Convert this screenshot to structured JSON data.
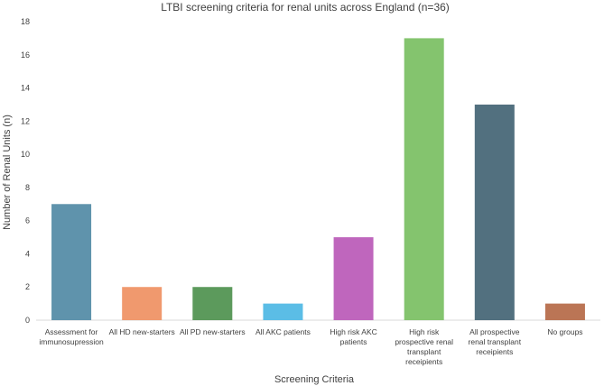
{
  "chart_data": {
    "type": "bar",
    "title": "LTBI screening criteria for renal units across England (n=36)",
    "xlabel": "Screening Criteria",
    "ylabel": "Number of Renal Units (n)",
    "ylim": [
      0,
      18
    ],
    "yticks": [
      0,
      2,
      4,
      6,
      8,
      10,
      12,
      14,
      16,
      18
    ],
    "grid": false,
    "categories": [
      [
        "Assessment for",
        "immunosupression"
      ],
      [
        "All HD new-starters"
      ],
      [
        "All PD new-starters"
      ],
      [
        "All AKC patients"
      ],
      [
        "High risk AKC",
        "patients"
      ],
      [
        "High risk",
        "prospective  renal",
        "transplant",
        "receipients"
      ],
      [
        "All prospective",
        "renal transplant",
        "receipients"
      ],
      [
        "No groups"
      ]
    ],
    "values": [
      7,
      2,
      2,
      1,
      5,
      17,
      13,
      1
    ],
    "colors": [
      "#5f93ac",
      "#f0996e",
      "#5c9a5c",
      "#5bbde6",
      "#bf66bd",
      "#84c46e",
      "#52707f",
      "#bb7555"
    ]
  }
}
